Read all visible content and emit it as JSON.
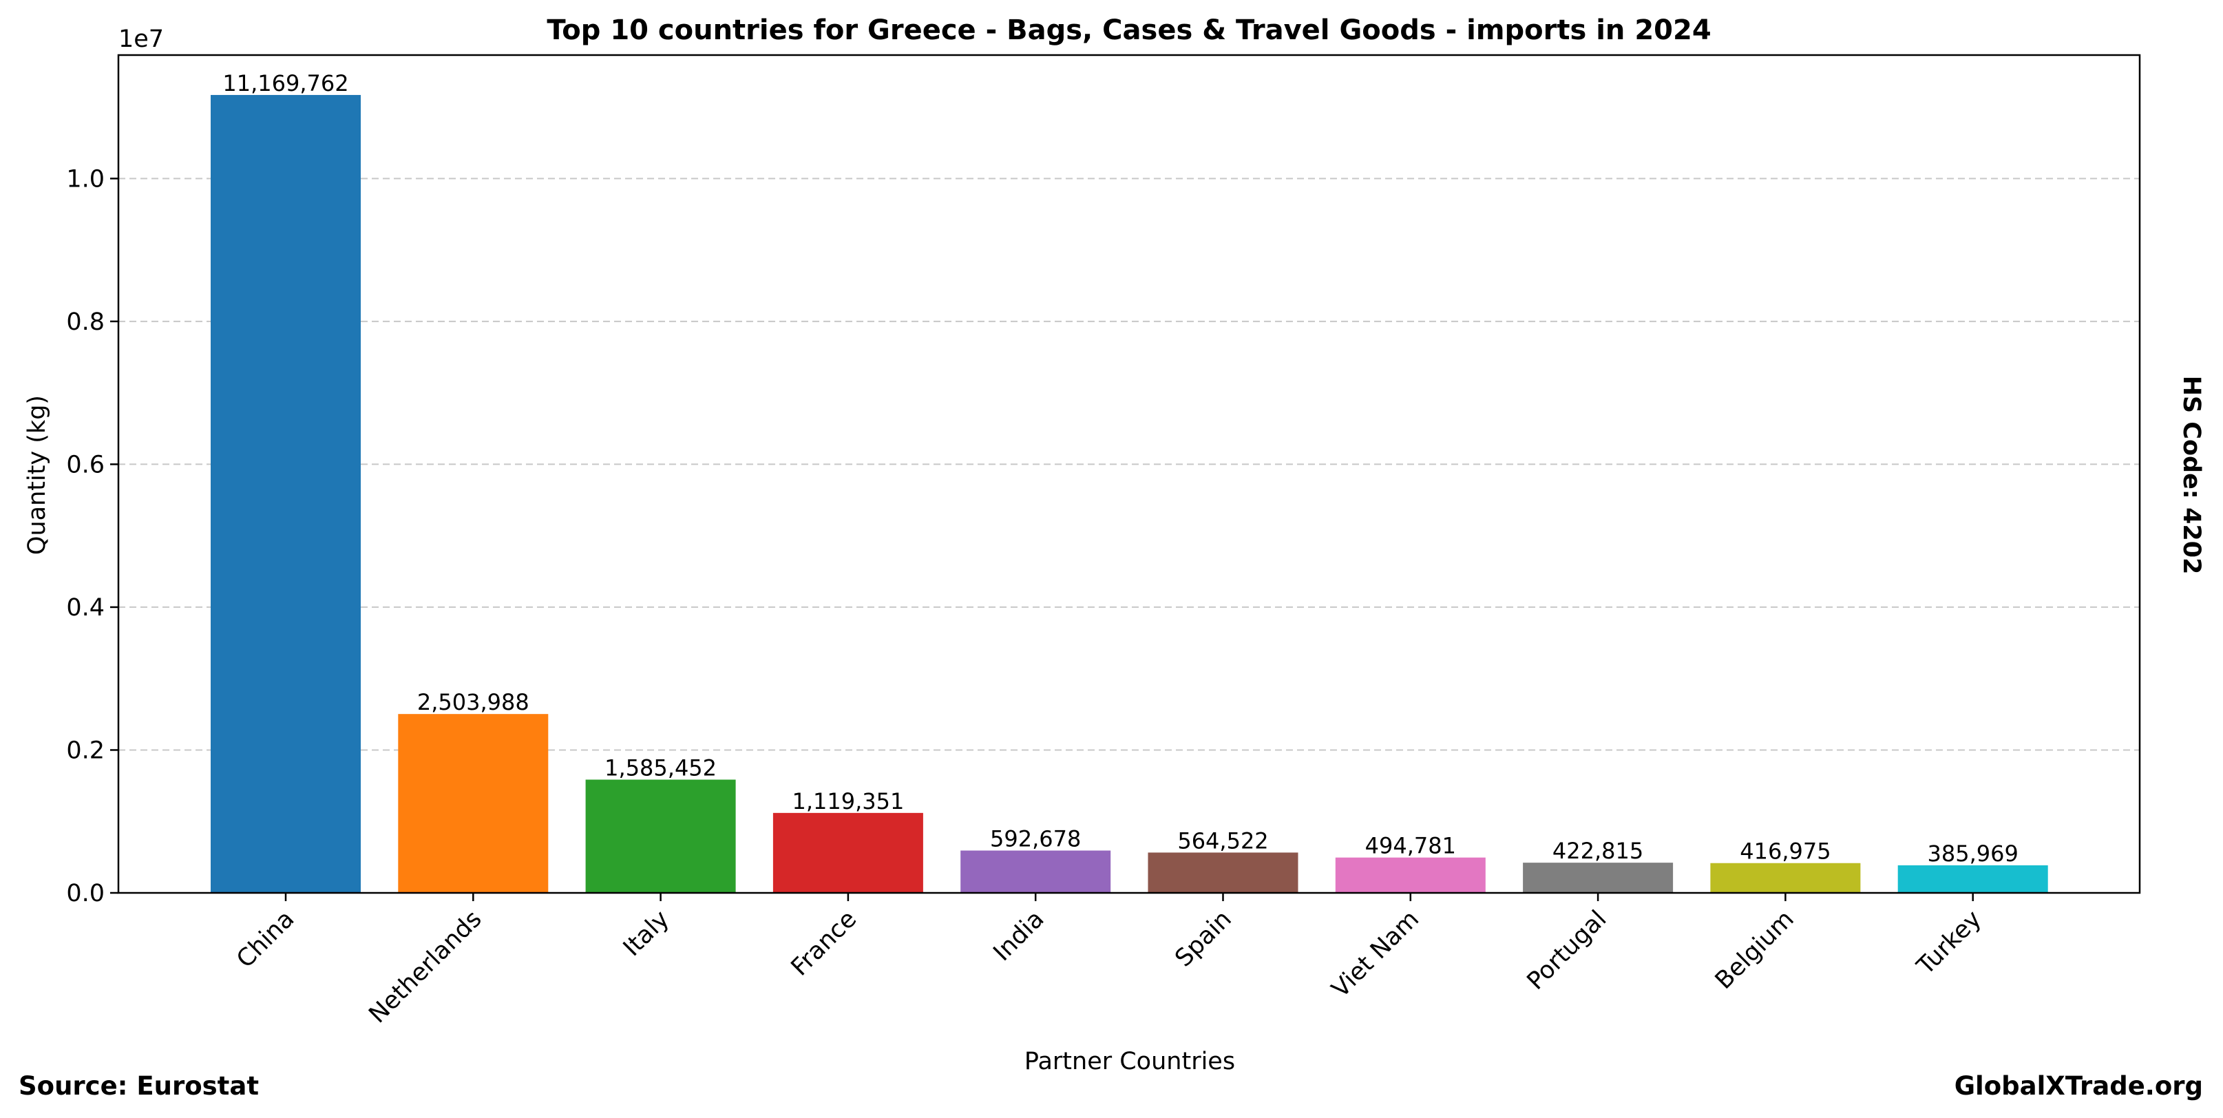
{
  "chart_data": {
    "type": "bar",
    "title": "Top 10 countries for Greece - Bags, Cases & Travel Goods - imports in 2024",
    "xlabel": "Partner Countries",
    "ylabel": "Quantity (kg)",
    "y_multiplier_label": "1e7",
    "y_ticks": [
      "0.0",
      "0.2",
      "0.4",
      "0.6",
      "0.8",
      "1.0"
    ],
    "y_tick_values": [
      0,
      2000000,
      4000000,
      6000000,
      8000000,
      10000000
    ],
    "ylim": [
      0,
      11728250
    ],
    "grid": "y-dashed",
    "categories": [
      "China",
      "Netherlands",
      "Italy",
      "France",
      "India",
      "Spain",
      "Viet Nam",
      "Portugal",
      "Belgium",
      "Turkey"
    ],
    "values": [
      11169762,
      2503988,
      1585452,
      1119351,
      592678,
      564522,
      494781,
      422815,
      416975,
      385969
    ],
    "value_labels": [
      "11,169,762",
      "2,503,988",
      "1,585,452",
      "1,119,351",
      "592,678",
      "564,522",
      "494,781",
      "422,815",
      "416,975",
      "385,969"
    ],
    "colors": [
      "#1f77b4",
      "#ff7f0e",
      "#2ca02c",
      "#d62728",
      "#9467bd",
      "#8c564b",
      "#e377c2",
      "#7f7f7f",
      "#bcbd22",
      "#17becf"
    ]
  },
  "footer": {
    "source": "Source: Eurostat",
    "brand": "GlobalXTrade.org"
  },
  "side_note": "HS Code: 4202"
}
